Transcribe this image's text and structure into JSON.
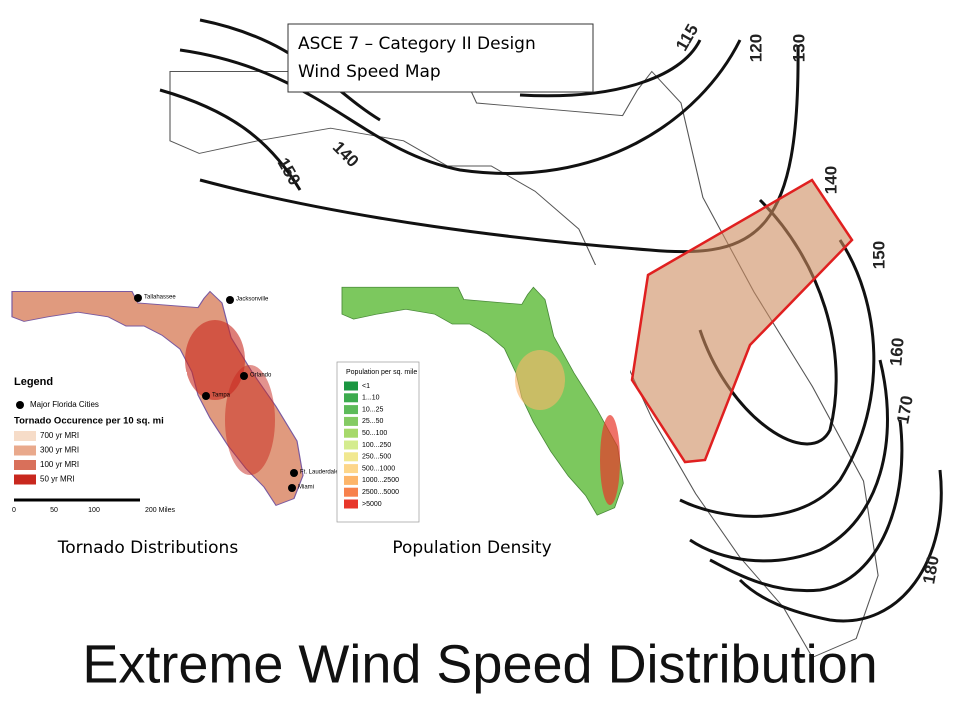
{
  "title": "Extreme Wind Speed Distribution",
  "wind_map": {
    "title_lines": [
      "ASCE 7 – Category II Design",
      "Wind Speed Map"
    ],
    "contour_labels": [
      115,
      120,
      130,
      140,
      150,
      140,
      150,
      160,
      170,
      180
    ]
  },
  "tornado_map": {
    "caption": "Tornado Distributions",
    "legend_title": "Legend",
    "cities_label": "Major Florida Cities",
    "scale_title": "Tornado Occurence per 10 sq. mi",
    "classes": [
      {
        "label": "700 yr MRI",
        "color": "#f6dcc8"
      },
      {
        "label": "300 yr MRI",
        "color": "#e9a98c"
      },
      {
        "label": "100 yr MRI",
        "color": "#d9705a"
      },
      {
        "label": "50 yr MRI",
        "color": "#c8281e"
      }
    ],
    "cities": [
      "Tallahassee",
      "Jacksonville",
      "Orlando",
      "Tampa",
      "Ft. Lauderdale",
      "Miami"
    ],
    "scale_labels": [
      "0",
      "50",
      "100",
      "200 Miles"
    ]
  },
  "population_map": {
    "caption": "Population Density",
    "legend_title": "Population per sq. mile",
    "classes": [
      {
        "label": "<1",
        "color": "#1a9641"
      },
      {
        "label": "1...10",
        "color": "#3cab4e"
      },
      {
        "label": "10...25",
        "color": "#5dbb5a"
      },
      {
        "label": "25...50",
        "color": "#84cb63"
      },
      {
        "label": "50...100",
        "color": "#a6d96a"
      },
      {
        "label": "100...250",
        "color": "#d4ec8e"
      },
      {
        "label": "250...500",
        "color": "#f1e890"
      },
      {
        "label": "500...1000",
        "color": "#fdd68a"
      },
      {
        "label": "1000...2500",
        "color": "#fdb56a"
      },
      {
        "label": "2500...5000",
        "color": "#f7814c"
      },
      {
        "label": ">5000",
        "color": "#e8362a"
      }
    ]
  }
}
